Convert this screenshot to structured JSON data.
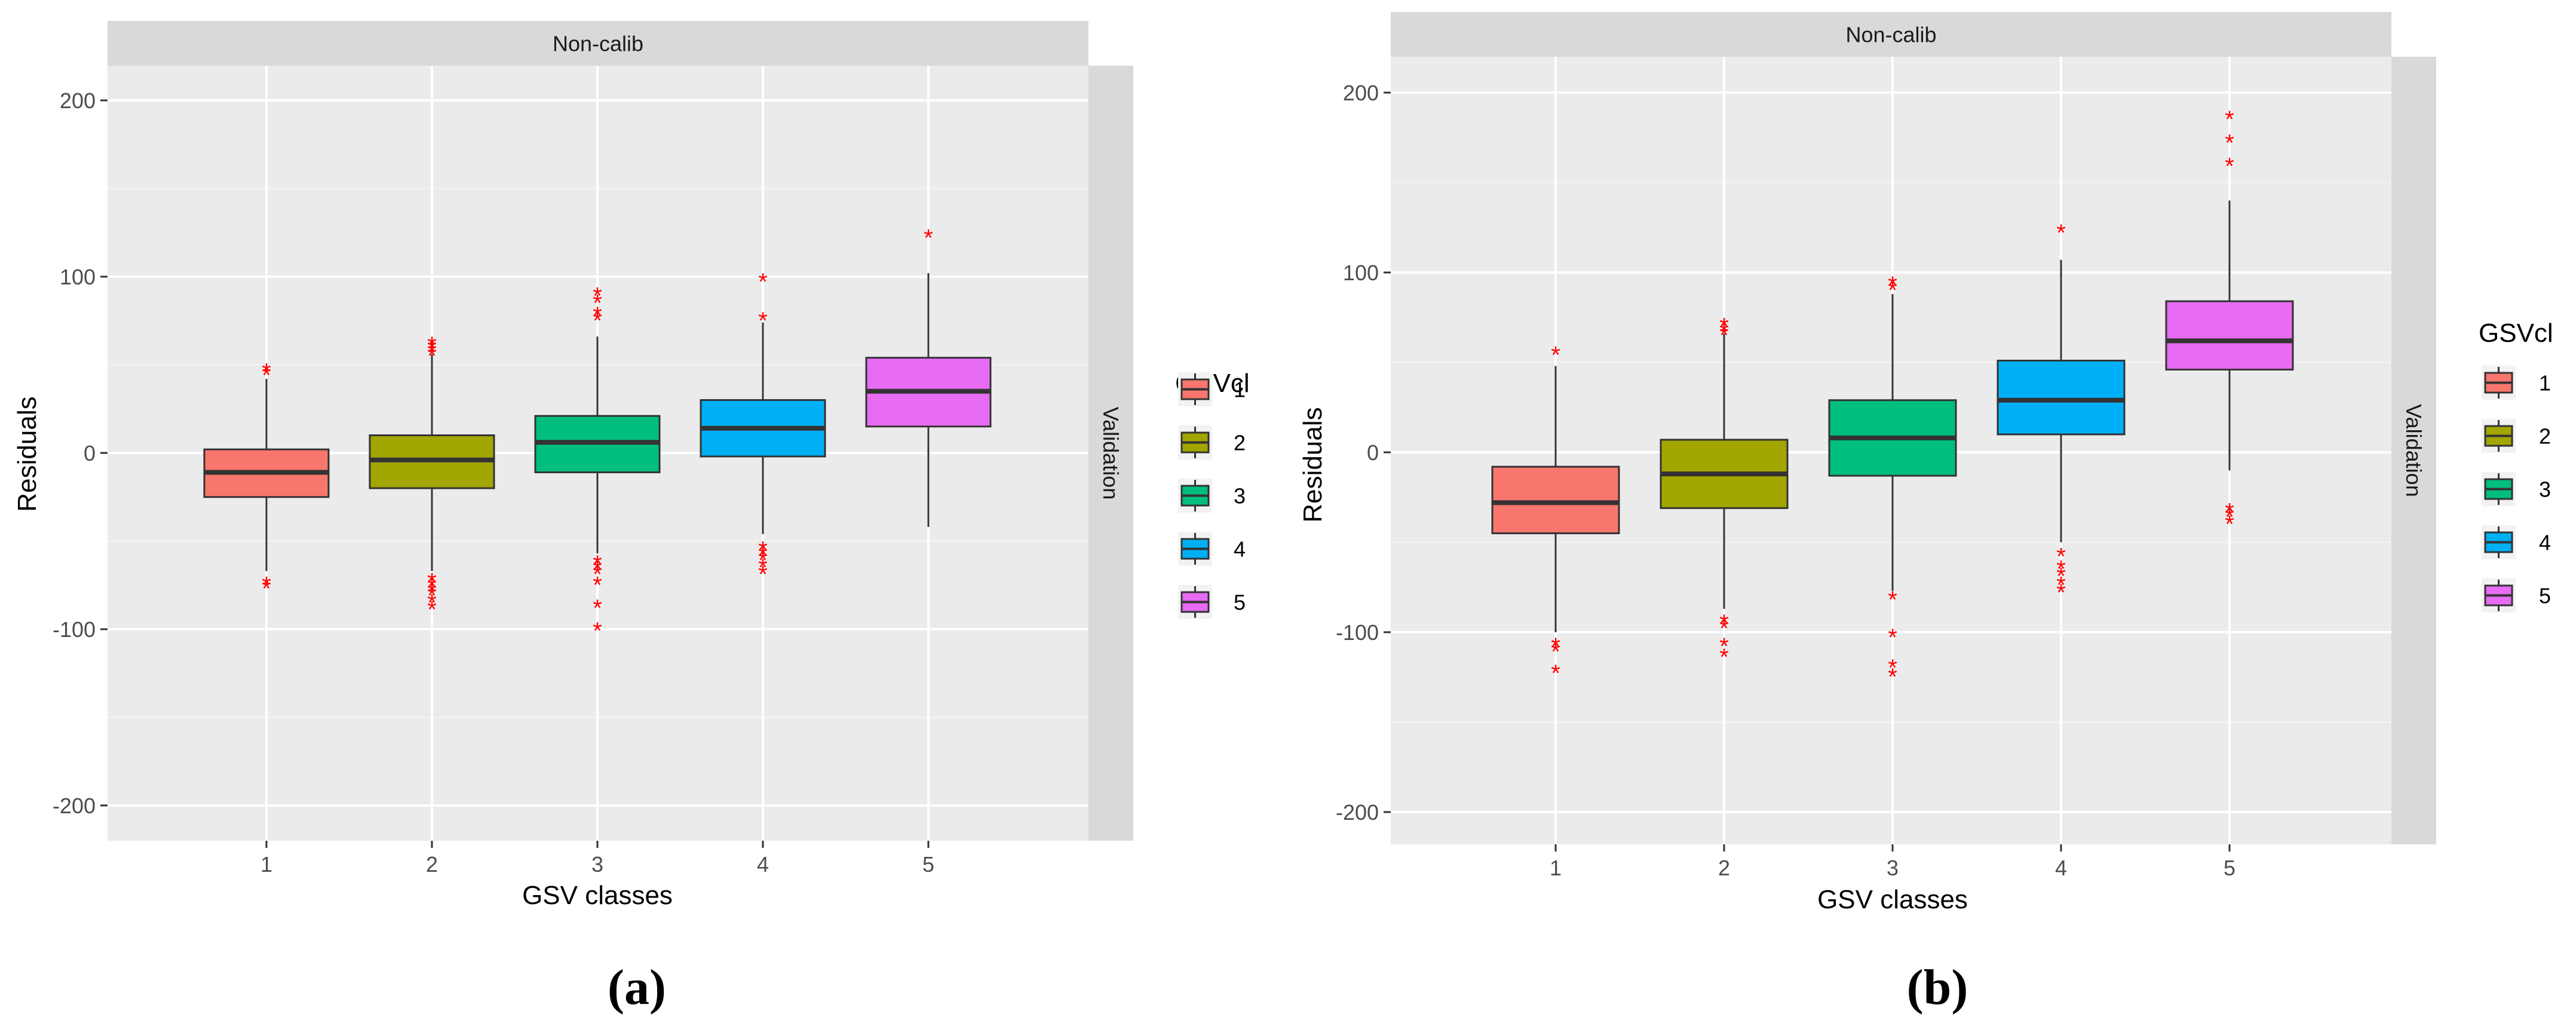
{
  "chart_data": [
    {
      "type": "boxplot",
      "panel_label": "(a)",
      "facet_top": "Non-calib",
      "facet_right": "Validation",
      "xlabel": "GSV classes",
      "ylabel": "Residuals",
      "ylim": [
        -220,
        225
      ],
      "yticks": [
        -200,
        -100,
        0,
        100,
        200
      ],
      "categories": [
        "1",
        "2",
        "3",
        "4",
        "5"
      ],
      "legend": {
        "title": "GSVcl",
        "entries": [
          "1",
          "2",
          "3",
          "4",
          "5"
        ]
      },
      "colors": [
        "#F8766D",
        "#A3A500",
        "#00BF7D",
        "#00B0F6",
        "#E76BF3"
      ],
      "outlier_color": "#FF0000",
      "boxes": [
        {
          "category": "1",
          "whisker_low": -67,
          "q1": -25,
          "median": -11,
          "q3": 2,
          "whisker_high": 42,
          "outliers": [
            47,
            49,
            -72,
            -74
          ]
        },
        {
          "category": "2",
          "whisker_low": -67,
          "q1": -20,
          "median": -4,
          "q3": 10,
          "whisker_high": 56,
          "outliers": [
            58,
            60,
            62,
            64,
            -70,
            -73,
            -76,
            -78,
            -82,
            -86
          ]
        },
        {
          "category": "3",
          "whisker_low": -57,
          "q1": -11,
          "median": 6,
          "q3": 21,
          "whisker_high": 66,
          "outliers": [
            78,
            81,
            88,
            92,
            -60,
            -63,
            -66,
            -72,
            -85,
            -98
          ]
        },
        {
          "category": "4",
          "whisker_low": -46,
          "q1": -2,
          "median": 14,
          "q3": 30,
          "whisker_high": 74,
          "outliers": [
            78,
            100,
            -52,
            -55,
            -58,
            -62,
            -66
          ]
        },
        {
          "category": "5",
          "whisker_low": -42,
          "q1": 15,
          "median": 35,
          "q3": 54,
          "whisker_high": 102,
          "outliers": [
            125
          ]
        }
      ]
    },
    {
      "type": "boxplot",
      "panel_label": "(b)",
      "facet_top": "Non-calib",
      "facet_right": "Validation",
      "xlabel": "GSV classes",
      "ylabel": "Residuals",
      "ylim": [
        -220,
        225
      ],
      "yticks": [
        -200,
        -100,
        0,
        100,
        200
      ],
      "categories": [
        "1",
        "2",
        "3",
        "4",
        "5"
      ],
      "legend": {
        "title": "GSVcl",
        "entries": [
          "1",
          "2",
          "3",
          "4",
          "5"
        ]
      },
      "colors": [
        "#F8766D",
        "#A3A500",
        "#00BF7D",
        "#00B0F6",
        "#E76BF3"
      ],
      "outlier_color": "#FF0000",
      "boxes": [
        {
          "category": "1",
          "whisker_low": -100,
          "q1": -45,
          "median": -28,
          "q3": -8,
          "whisker_high": 48,
          "outliers": [
            57,
            -105,
            -108,
            -120
          ]
        },
        {
          "category": "2",
          "whisker_low": -87,
          "q1": -31,
          "median": -12,
          "q3": 7,
          "whisker_high": 66,
          "outliers": [
            68,
            70,
            73,
            -92,
            -95,
            -105,
            -111
          ]
        },
        {
          "category": "3",
          "whisker_low": -77,
          "q1": -13,
          "median": 8,
          "q3": 29,
          "whisker_high": 88,
          "outliers": [
            93,
            96,
            -79,
            -100,
            -117,
            -122
          ]
        },
        {
          "category": "4",
          "whisker_low": -50,
          "q1": 10,
          "median": 29,
          "q3": 51,
          "whisker_high": 107,
          "outliers": [
            125,
            -55,
            -62,
            -66,
            -71,
            -75
          ]
        },
        {
          "category": "5",
          "whisker_low": -10,
          "q1": 46,
          "median": 62,
          "q3": 84,
          "whisker_high": 140,
          "outliers": [
            162,
            175,
            188,
            -30,
            -33,
            -37
          ]
        }
      ]
    }
  ]
}
